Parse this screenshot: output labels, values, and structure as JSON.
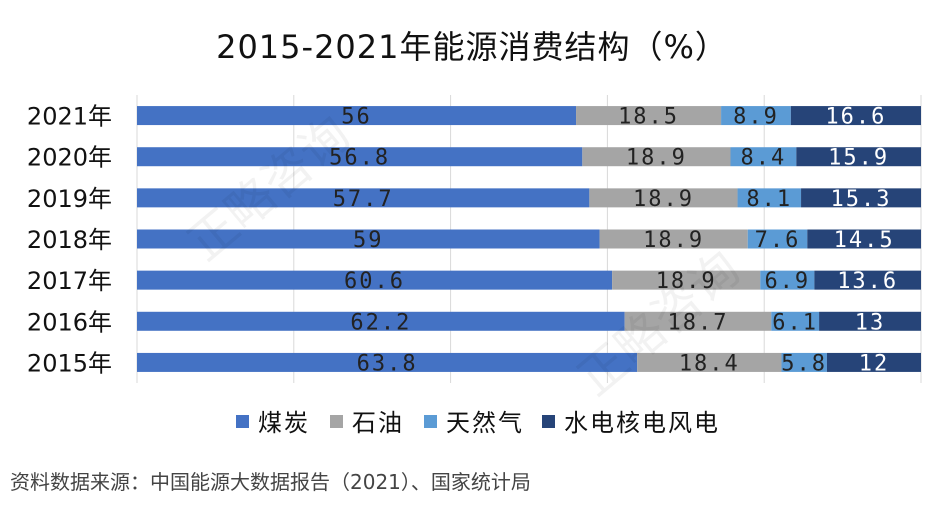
{
  "chart_data": {
    "type": "bar",
    "orientation": "horizontal",
    "stacked": true,
    "title": "2015-2021年能源消费结构（%）",
    "xlim": [
      0,
      100
    ],
    "grid": true,
    "legend_position": "bottom",
    "categories": [
      "2021年",
      "2020年",
      "2019年",
      "2018年",
      "2017年",
      "2016年",
      "2015年"
    ],
    "series": [
      {
        "name": "煤炭",
        "color": "#4472c4",
        "label_color": "#222222",
        "values": [
          56,
          56.8,
          57.7,
          59,
          60.6,
          62.2,
          63.8
        ]
      },
      {
        "name": "石油",
        "color": "#a5a5a5",
        "label_color": "#222222",
        "values": [
          18.5,
          18.9,
          18.9,
          18.9,
          18.9,
          18.7,
          18.4
        ]
      },
      {
        "name": "天然气",
        "color": "#5b9bd5",
        "label_color": "#222222",
        "values": [
          8.9,
          8.4,
          8.1,
          7.6,
          6.9,
          6.1,
          5.8
        ]
      },
      {
        "name": "水电核电风电",
        "color": "#264478",
        "label_color": "#ffffff",
        "values": [
          16.6,
          15.9,
          15.3,
          14.5,
          13.6,
          13,
          12
        ]
      }
    ]
  },
  "source": "资料数据来源：中国能源大数据报告（2021）、国家统计局",
  "watermark_text": "正略咨询"
}
